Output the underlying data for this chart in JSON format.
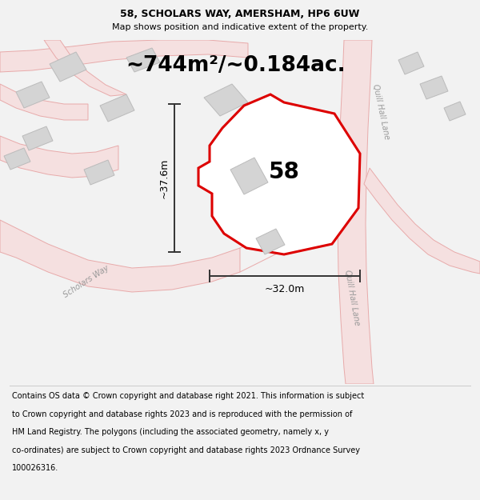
{
  "title_line1": "58, SCHOLARS WAY, AMERSHAM, HP6 6UW",
  "title_line2": "Map shows position and indicative extent of the property.",
  "area_label": "~744m²/~0.184ac.",
  "number_label": "58",
  "dim_width": "~32.0m",
  "dim_height": "~37.6m",
  "road_label_scholars": "Scholars Way",
  "road_label_quill_upper": "Quill Hall Lane",
  "road_label_quill_lower": "Quill Hall Lane",
  "footer_text": "Contains OS data © Crown copyright and database right 2021. This information is subject to Crown copyright and database rights 2023 and is reproduced with the permission of HM Land Registry. The polygons (including the associated geometry, namely x, y co-ordinates) are subject to Crown copyright and database rights 2023 Ordnance Survey 100026316.",
  "bg_color": "#f2f2f2",
  "map_bg": "#ffffff",
  "plot_stroke": "#dd0000",
  "plot_fill": "#ffffff",
  "road_stroke": "#e8aaaa",
  "road_fill": "#f5e0e0",
  "building_fill": "#d4d4d4",
  "building_stroke": "#bbbbbb",
  "dim_color": "#333333",
  "text_gray": "#999999",
  "title_fontsize": 9,
  "subtitle_fontsize": 8,
  "area_fontsize": 19,
  "number_fontsize": 20,
  "dim_fontsize": 9,
  "road_label_fontsize": 7,
  "footer_fontsize": 7
}
